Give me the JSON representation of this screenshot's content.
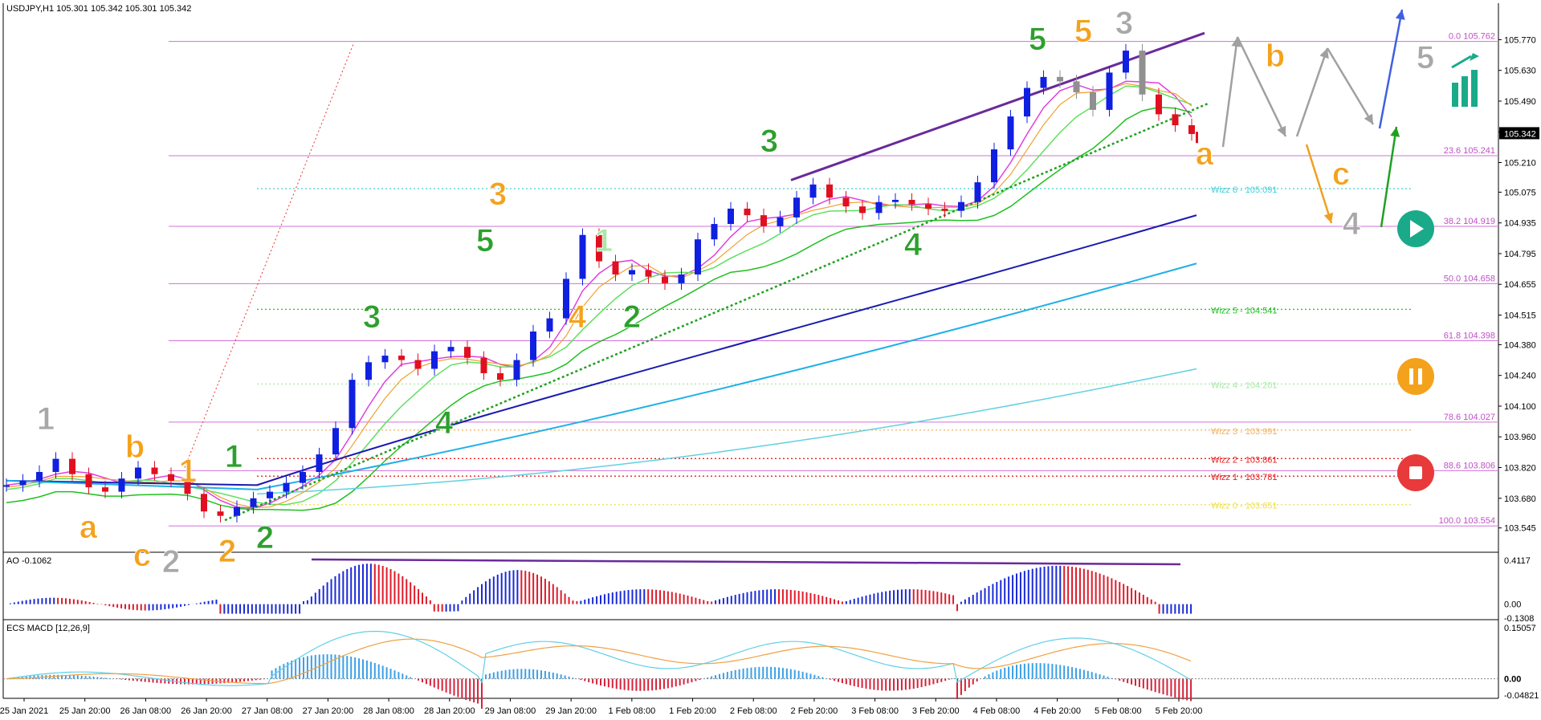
{
  "header": {
    "symbol_line": "USDJPY,H1  105.301 105.342 105.301 105.342"
  },
  "chart_data": {
    "type": "candlestick",
    "instrument": "USDJPY",
    "timeframe": "H1",
    "ohlc_last": {
      "open": 105.301,
      "high": 105.342,
      "low": 105.301,
      "close": 105.342
    },
    "current_price": "105.342",
    "ylim": [
      103.5,
      105.83
    ],
    "y_ticks": [
      "105.770",
      "105.630",
      "105.490",
      "105.350",
      "105.210",
      "105.075",
      "104.935",
      "104.795",
      "104.655",
      "104.515",
      "104.380",
      "104.240",
      "104.100",
      "103.960",
      "103.820",
      "103.680",
      "103.545"
    ],
    "x_ticks": [
      "25 Jan 2021",
      "25 Jan 20:00",
      "26 Jan 08:00",
      "26 Jan 20:00",
      "27 Jan 08:00",
      "27 Jan 20:00",
      "28 Jan 08:00",
      "28 Jan 20:00",
      "29 Jan 08:00",
      "29 Jan 20:00",
      "1 Feb 08:00",
      "1 Feb 20:00",
      "2 Feb 08:00",
      "2 Feb 20:00",
      "3 Feb 08:00",
      "3 Feb 20:00",
      "4 Feb 08:00",
      "4 Feb 20:00",
      "5 Feb 08:00",
      "5 Feb 20:00"
    ],
    "close_path": [
      103.74,
      103.76,
      103.8,
      103.86,
      103.79,
      103.73,
      103.71,
      103.77,
      103.82,
      103.79,
      103.76,
      103.7,
      103.62,
      103.6,
      103.64,
      103.68,
      103.71,
      103.75,
      103.8,
      103.88,
      104.0,
      104.22,
      104.3,
      104.33,
      104.31,
      104.27,
      104.35,
      104.37,
      104.32,
      104.25,
      104.22,
      104.31,
      104.44,
      104.5,
      104.68,
      104.88,
      104.76,
      104.7,
      104.72,
      104.69,
      104.66,
      104.7,
      104.86,
      104.93,
      105.0,
      104.97,
      104.92,
      104.96,
      105.05,
      105.11,
      105.05,
      105.01,
      104.98,
      105.03,
      105.04,
      105.02,
      105.0,
      104.99,
      105.03,
      105.12,
      105.27,
      105.42,
      105.55,
      105.6,
      105.58,
      105.53,
      105.45,
      105.62,
      105.72,
      105.52,
      105.43,
      105.38,
      105.34
    ],
    "fibonacci": [
      {
        "label": "0.0 105.762",
        "value": 105.762
      },
      {
        "label": "23.6 105.241",
        "value": 105.241
      },
      {
        "label": "38.2 104.919",
        "value": 104.919
      },
      {
        "label": "50.0 104.658",
        "value": 104.658
      },
      {
        "label": "61.8 104.398",
        "value": 104.398
      },
      {
        "label": "78.6 104.027",
        "value": 104.027
      },
      {
        "label": "88.6 103.806",
        "value": 103.806
      },
      {
        "label": "100.0 103.554",
        "value": 103.554
      }
    ],
    "wizz_levels": [
      {
        "label": "Wizz 6 - 105.091",
        "value": 105.091,
        "color": "#40d0d8"
      },
      {
        "label": "Wizz 5 - 104.541",
        "value": 104.541,
        "color": "#22c022"
      },
      {
        "label": "Wizz 4 - 104.201",
        "value": 104.201,
        "color": "#a8e8a8"
      },
      {
        "label": "Wizz 3 - 103.991",
        "value": 103.991,
        "color": "#f4b060"
      },
      {
        "label": "Wizz 2 - 103.861",
        "value": 103.861,
        "color": "#e82020"
      },
      {
        "label": "Wizz 1 - 103.781",
        "value": 103.781,
        "color": "#e82020"
      },
      {
        "label": "Wizz 0 - 103.651",
        "value": 103.651,
        "color": "#f0e040"
      }
    ],
    "wave_labels": [
      {
        "text": "1",
        "color": "#a8a8a8"
      },
      {
        "text": "b",
        "color": "#f4a21c"
      },
      {
        "text": "a",
        "color": "#f4a21c"
      },
      {
        "text": "1",
        "color": "#f4a21c"
      },
      {
        "text": "1",
        "color": "#2ca02c"
      },
      {
        "text": "c",
        "color": "#f4a21c"
      },
      {
        "text": "2",
        "color": "#a8a8a8"
      },
      {
        "text": "2",
        "color": "#f4a21c"
      },
      {
        "text": "2",
        "color": "#2ca02c"
      },
      {
        "text": "3",
        "color": "#2ca02c"
      },
      {
        "text": "4",
        "color": "#2ca02c"
      },
      {
        "text": "5",
        "color": "#2ca02c"
      },
      {
        "text": "3",
        "color": "#f4a21c"
      },
      {
        "text": "1",
        "color": "#a8e8a8"
      },
      {
        "text": "4",
        "color": "#f4a21c"
      },
      {
        "text": "2",
        "color": "#2ca02c"
      },
      {
        "text": "3",
        "color": "#2ca02c"
      },
      {
        "text": "4",
        "color": "#2ca02c"
      },
      {
        "text": "5",
        "color": "#2ca02c"
      },
      {
        "text": "5",
        "color": "#f4a21c"
      },
      {
        "text": "3",
        "color": "#a8a8a8"
      },
      {
        "text": "a",
        "color": "#f4a21c"
      },
      {
        "text": "b",
        "color": "#f4a21c"
      },
      {
        "text": "c",
        "color": "#f4a21c"
      },
      {
        "text": "4",
        "color": "#a8a8a8"
      },
      {
        "text": "5",
        "color": "#a8a8a8"
      }
    ],
    "ao": {
      "label": "AO -0.1062",
      "ylim": [
        -0.1308,
        0.4117
      ],
      "y_ticks": [
        "0.4117",
        "0.00",
        "-0.1308"
      ]
    },
    "macd": {
      "label": "ECS MACD [12,26,9]",
      "ylim": [
        -0.04821,
        0.15057
      ],
      "y_ticks": [
        "0.15057",
        "0.00",
        "-0.04821"
      ]
    }
  }
}
